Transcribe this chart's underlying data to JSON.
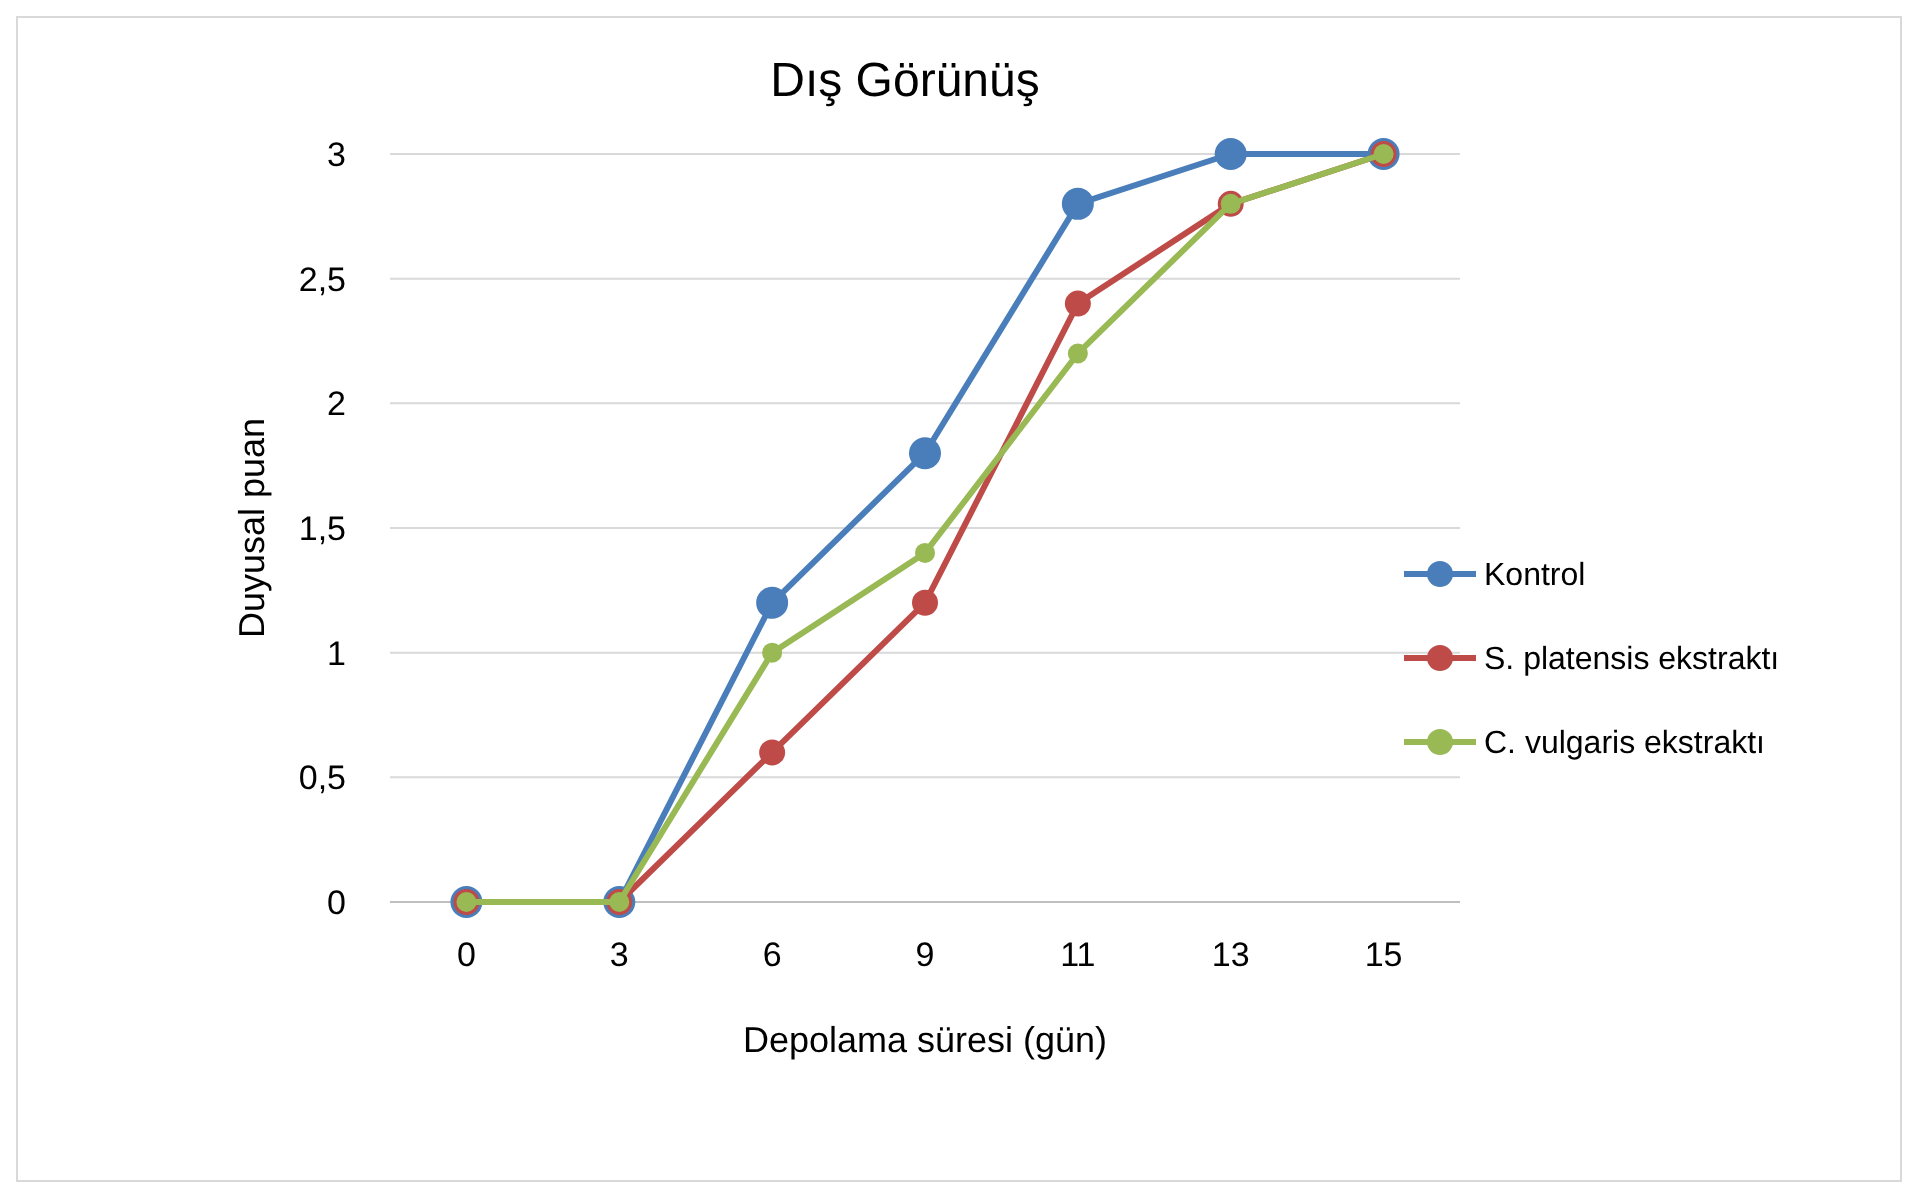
{
  "chart_data": {
    "type": "line",
    "title": "Dış Görünüş",
    "xlabel": "Depolama süresi (gün)",
    "ylabel": "Duyusal puan",
    "categories": [
      "0",
      "3",
      "6",
      "9",
      "11",
      "13",
      "15"
    ],
    "ylim": [
      0,
      3
    ],
    "yticks": [
      0,
      {
        "value": 0.5,
        "label": "0,5"
      },
      1,
      {
        "value": 1.5,
        "label": "1,5"
      },
      2,
      {
        "value": 2.5,
        "label": "2,5"
      },
      3
    ],
    "grid": "y",
    "legend": "right",
    "marker": "circle",
    "line_style": "solid",
    "series": [
      {
        "name": "Kontrol",
        "color": "#4a7ebb",
        "values": [
          0,
          0,
          1.2,
          1.8,
          2.8,
          3,
          3
        ]
      },
      {
        "name": "S. platensis ekstraktı",
        "color": "#be4b48",
        "values": [
          0,
          0,
          0.6,
          1.2,
          2.4,
          2.8,
          3
        ]
      },
      {
        "name": "C. vulgaris ekstraktı",
        "color": "#98b954",
        "values": [
          0,
          0,
          1,
          1.4,
          2.2,
          2.8,
          3
        ]
      }
    ]
  }
}
